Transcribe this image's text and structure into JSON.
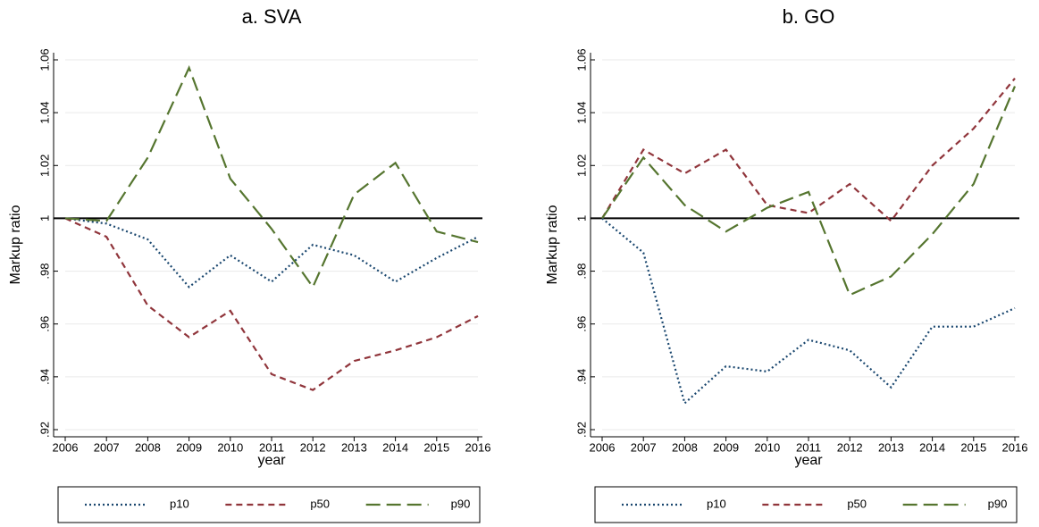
{
  "chart_data": [
    {
      "type": "line",
      "title": "a.  SVA",
      "xlabel": "year",
      "ylabel": "Markup ratio",
      "x": [
        2006,
        2007,
        2008,
        2009,
        2010,
        2011,
        2012,
        2013,
        2014,
        2015,
        2016
      ],
      "xlim": [
        2006,
        2016
      ],
      "xticks": [
        2006,
        2007,
        2008,
        2009,
        2010,
        2011,
        2012,
        2013,
        2014,
        2015,
        2016
      ],
      "ylim": [
        0.92,
        1.06
      ],
      "yticks": [
        {
          "value": 0.92,
          "label": ".92"
        },
        {
          "value": 0.94,
          "label": ".94"
        },
        {
          "value": 0.96,
          "label": ".96"
        },
        {
          "value": 0.98,
          "label": ".98"
        },
        1,
        1.02,
        1.04,
        1.06
      ],
      "yline": 1,
      "grid": true,
      "legend": "bottom",
      "series": [
        {
          "name": "p10",
          "color": "#1a476f",
          "values": [
            1.0,
            0.998,
            0.992,
            0.974,
            0.986,
            0.976,
            0.99,
            0.986,
            0.976,
            0.985,
            0.993
          ]
        },
        {
          "name": "p50",
          "color": "#90353b",
          "values": [
            1.0,
            0.993,
            0.967,
            0.955,
            0.965,
            0.941,
            0.935,
            0.946,
            0.95,
            0.955,
            0.963
          ]
        },
        {
          "name": "p90",
          "color": "#55752f",
          "values": [
            1.0,
            0.999,
            1.023,
            1.057,
            1.015,
            0.996,
            0.974,
            1.009,
            1.021,
            0.995,
            0.991
          ]
        }
      ]
    },
    {
      "type": "line",
      "title": "b.  GO",
      "xlabel": "year",
      "ylabel": "Markup ratio",
      "x": [
        2006,
        2007,
        2008,
        2009,
        2010,
        2011,
        2012,
        2013,
        2014,
        2015,
        2016
      ],
      "xlim": [
        2006,
        2016
      ],
      "xticks": [
        2006,
        2007,
        2008,
        2009,
        2010,
        2011,
        2012,
        2013,
        2014,
        2015,
        2016
      ],
      "ylim": [
        0.92,
        1.06
      ],
      "yticks": [
        {
          "value": 0.92,
          "label": ".92"
        },
        {
          "value": 0.94,
          "label": ".94"
        },
        {
          "value": 0.96,
          "label": ".96"
        },
        {
          "value": 0.98,
          "label": ".98"
        },
        1,
        1.02,
        1.04,
        1.06
      ],
      "yline": 1,
      "grid": true,
      "legend": "bottom",
      "series": [
        {
          "name": "p10",
          "color": "#1a476f",
          "values": [
            1.0,
            0.987,
            0.93,
            0.944,
            0.942,
            0.954,
            0.95,
            0.936,
            0.959,
            0.959,
            0.966
          ]
        },
        {
          "name": "p50",
          "color": "#90353b",
          "values": [
            1.0,
            1.026,
            1.017,
            1.026,
            1.005,
            1.002,
            1.013,
            0.999,
            1.02,
            1.034,
            1.053
          ]
        },
        {
          "name": "p90",
          "color": "#55752f",
          "values": [
            1.0,
            1.023,
            1.005,
            0.995,
            1.004,
            1.01,
            0.971,
            0.978,
            0.994,
            1.013,
            1.05
          ]
        }
      ]
    }
  ]
}
